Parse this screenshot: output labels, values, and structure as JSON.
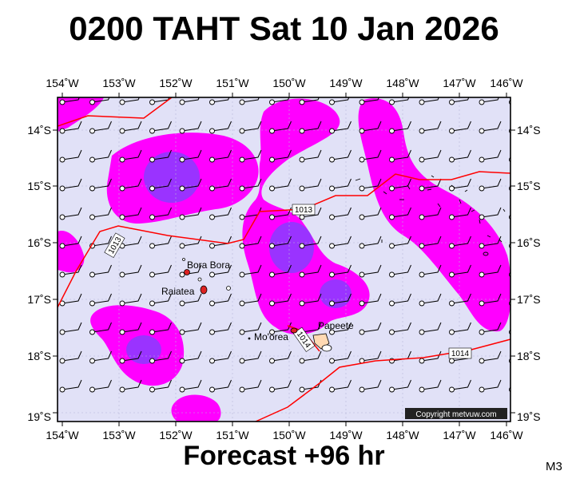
{
  "header": {
    "title": "0200 TAHT Sat 10 Jan 2026",
    "forecast_label": "Forecast +96 hr",
    "model_code": "M3"
  },
  "map": {
    "lon_labels": [
      "154˚W",
      "153˚W",
      "152˚W",
      "151˚W",
      "150˚W",
      "149˚W",
      "148˚W",
      "147˚W",
      "146˚W"
    ],
    "lat_labels": [
      "14˚S",
      "15˚S",
      "16˚S",
      "17˚S",
      "18˚S",
      "19˚S"
    ],
    "places": [
      {
        "name": "Bora Bora"
      },
      {
        "name": "Raiatea"
      },
      {
        "name": "Mo'orea"
      },
      {
        "name": "Papeete"
      }
    ],
    "isobars": [
      {
        "label": "1013"
      },
      {
        "label": "1013"
      },
      {
        "label": "1014"
      },
      {
        "label": "1014"
      }
    ],
    "copyright": "Copyright metvuw.com",
    "colors": {
      "sea_background": "#e1e1f7",
      "precip_light": "#ff00ff",
      "precip_heavy": "#9a33ff",
      "isobar": "#ff0000",
      "land": "#dd2222"
    }
  }
}
